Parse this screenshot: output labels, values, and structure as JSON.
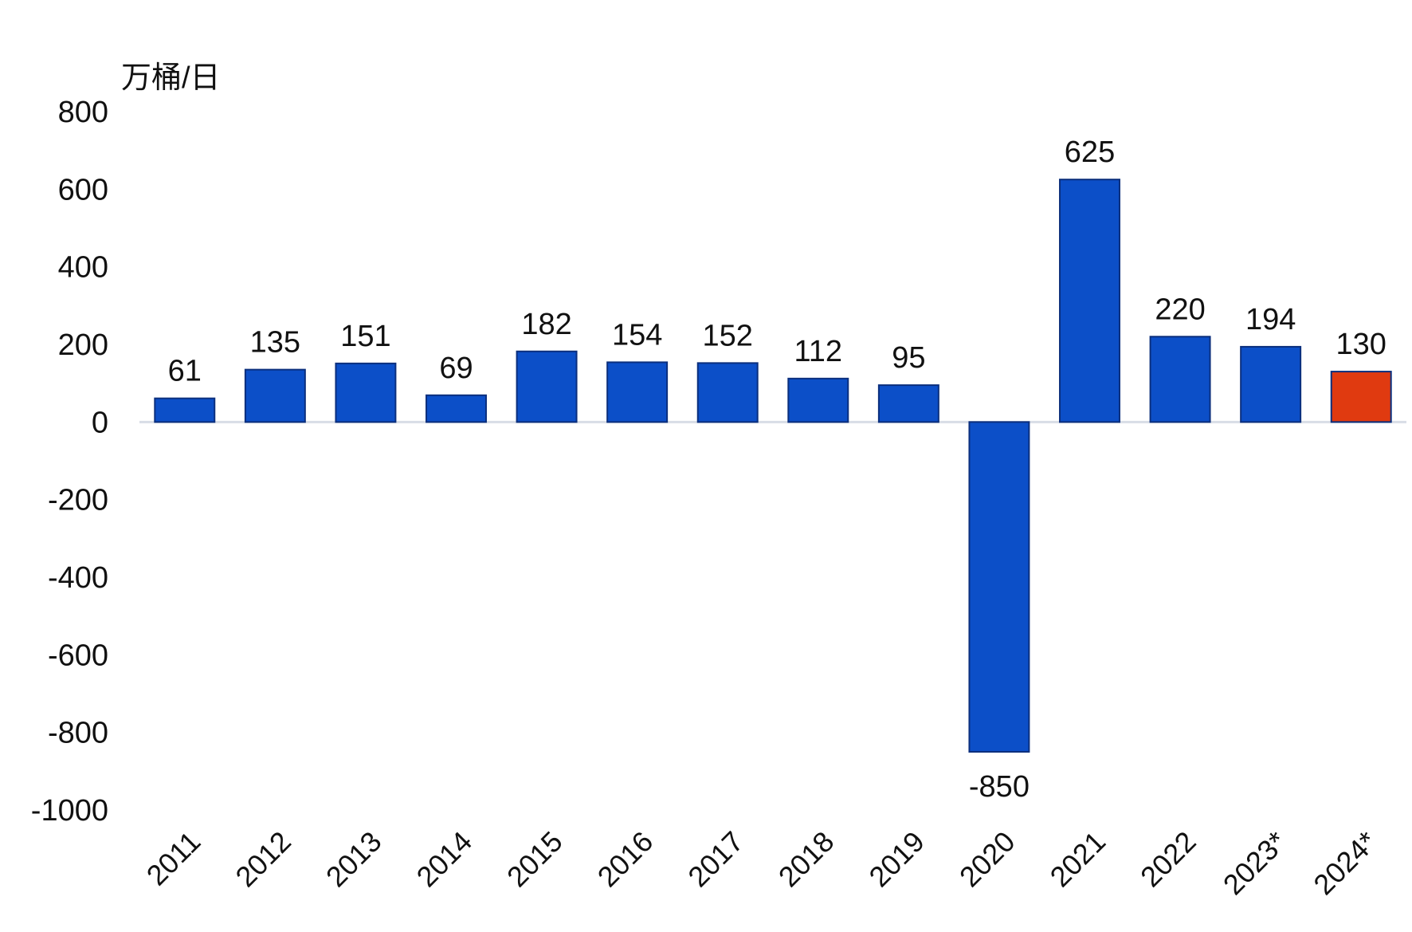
{
  "chart_data": {
    "type": "bar",
    "title": "",
    "unit_label": "万桶/日",
    "xlabel": "",
    "ylabel": "",
    "ylim": [
      -1000,
      800
    ],
    "yticks": [
      800,
      600,
      400,
      200,
      0,
      -200,
      -400,
      -600,
      -800,
      -1000
    ],
    "ytick_labels": [
      "800",
      "600",
      "400",
      "200",
      "0",
      "-200",
      "-400",
      "-600",
      "-800",
      "-1000"
    ],
    "categories": [
      "2011",
      "2012",
      "2013",
      "2014",
      "2015",
      "2016",
      "2017",
      "2018",
      "2019",
      "2020",
      "2021",
      "2022",
      "2023*",
      "2024*"
    ],
    "values": [
      61,
      135,
      151,
      69,
      182,
      154,
      152,
      112,
      95,
      -850,
      625,
      220,
      194,
      130
    ],
    "data_labels": [
      "61",
      "135",
      "151",
      "69",
      "182",
      "154",
      "152",
      "112",
      "95",
      "-850",
      "625",
      "220",
      "194",
      "130"
    ],
    "bar_colors": [
      "#0c4fc8",
      "#0c4fc8",
      "#0c4fc8",
      "#0c4fc8",
      "#0c4fc8",
      "#0c4fc8",
      "#0c4fc8",
      "#0c4fc8",
      "#0c4fc8",
      "#0c4fc8",
      "#0c4fc8",
      "#0c4fc8",
      "#0c4fc8",
      "#e03a10"
    ],
    "bar_outline_color": "#0b2f7d",
    "zero_line_color": "#d8dde6",
    "grid": false,
    "legend": "none"
  }
}
